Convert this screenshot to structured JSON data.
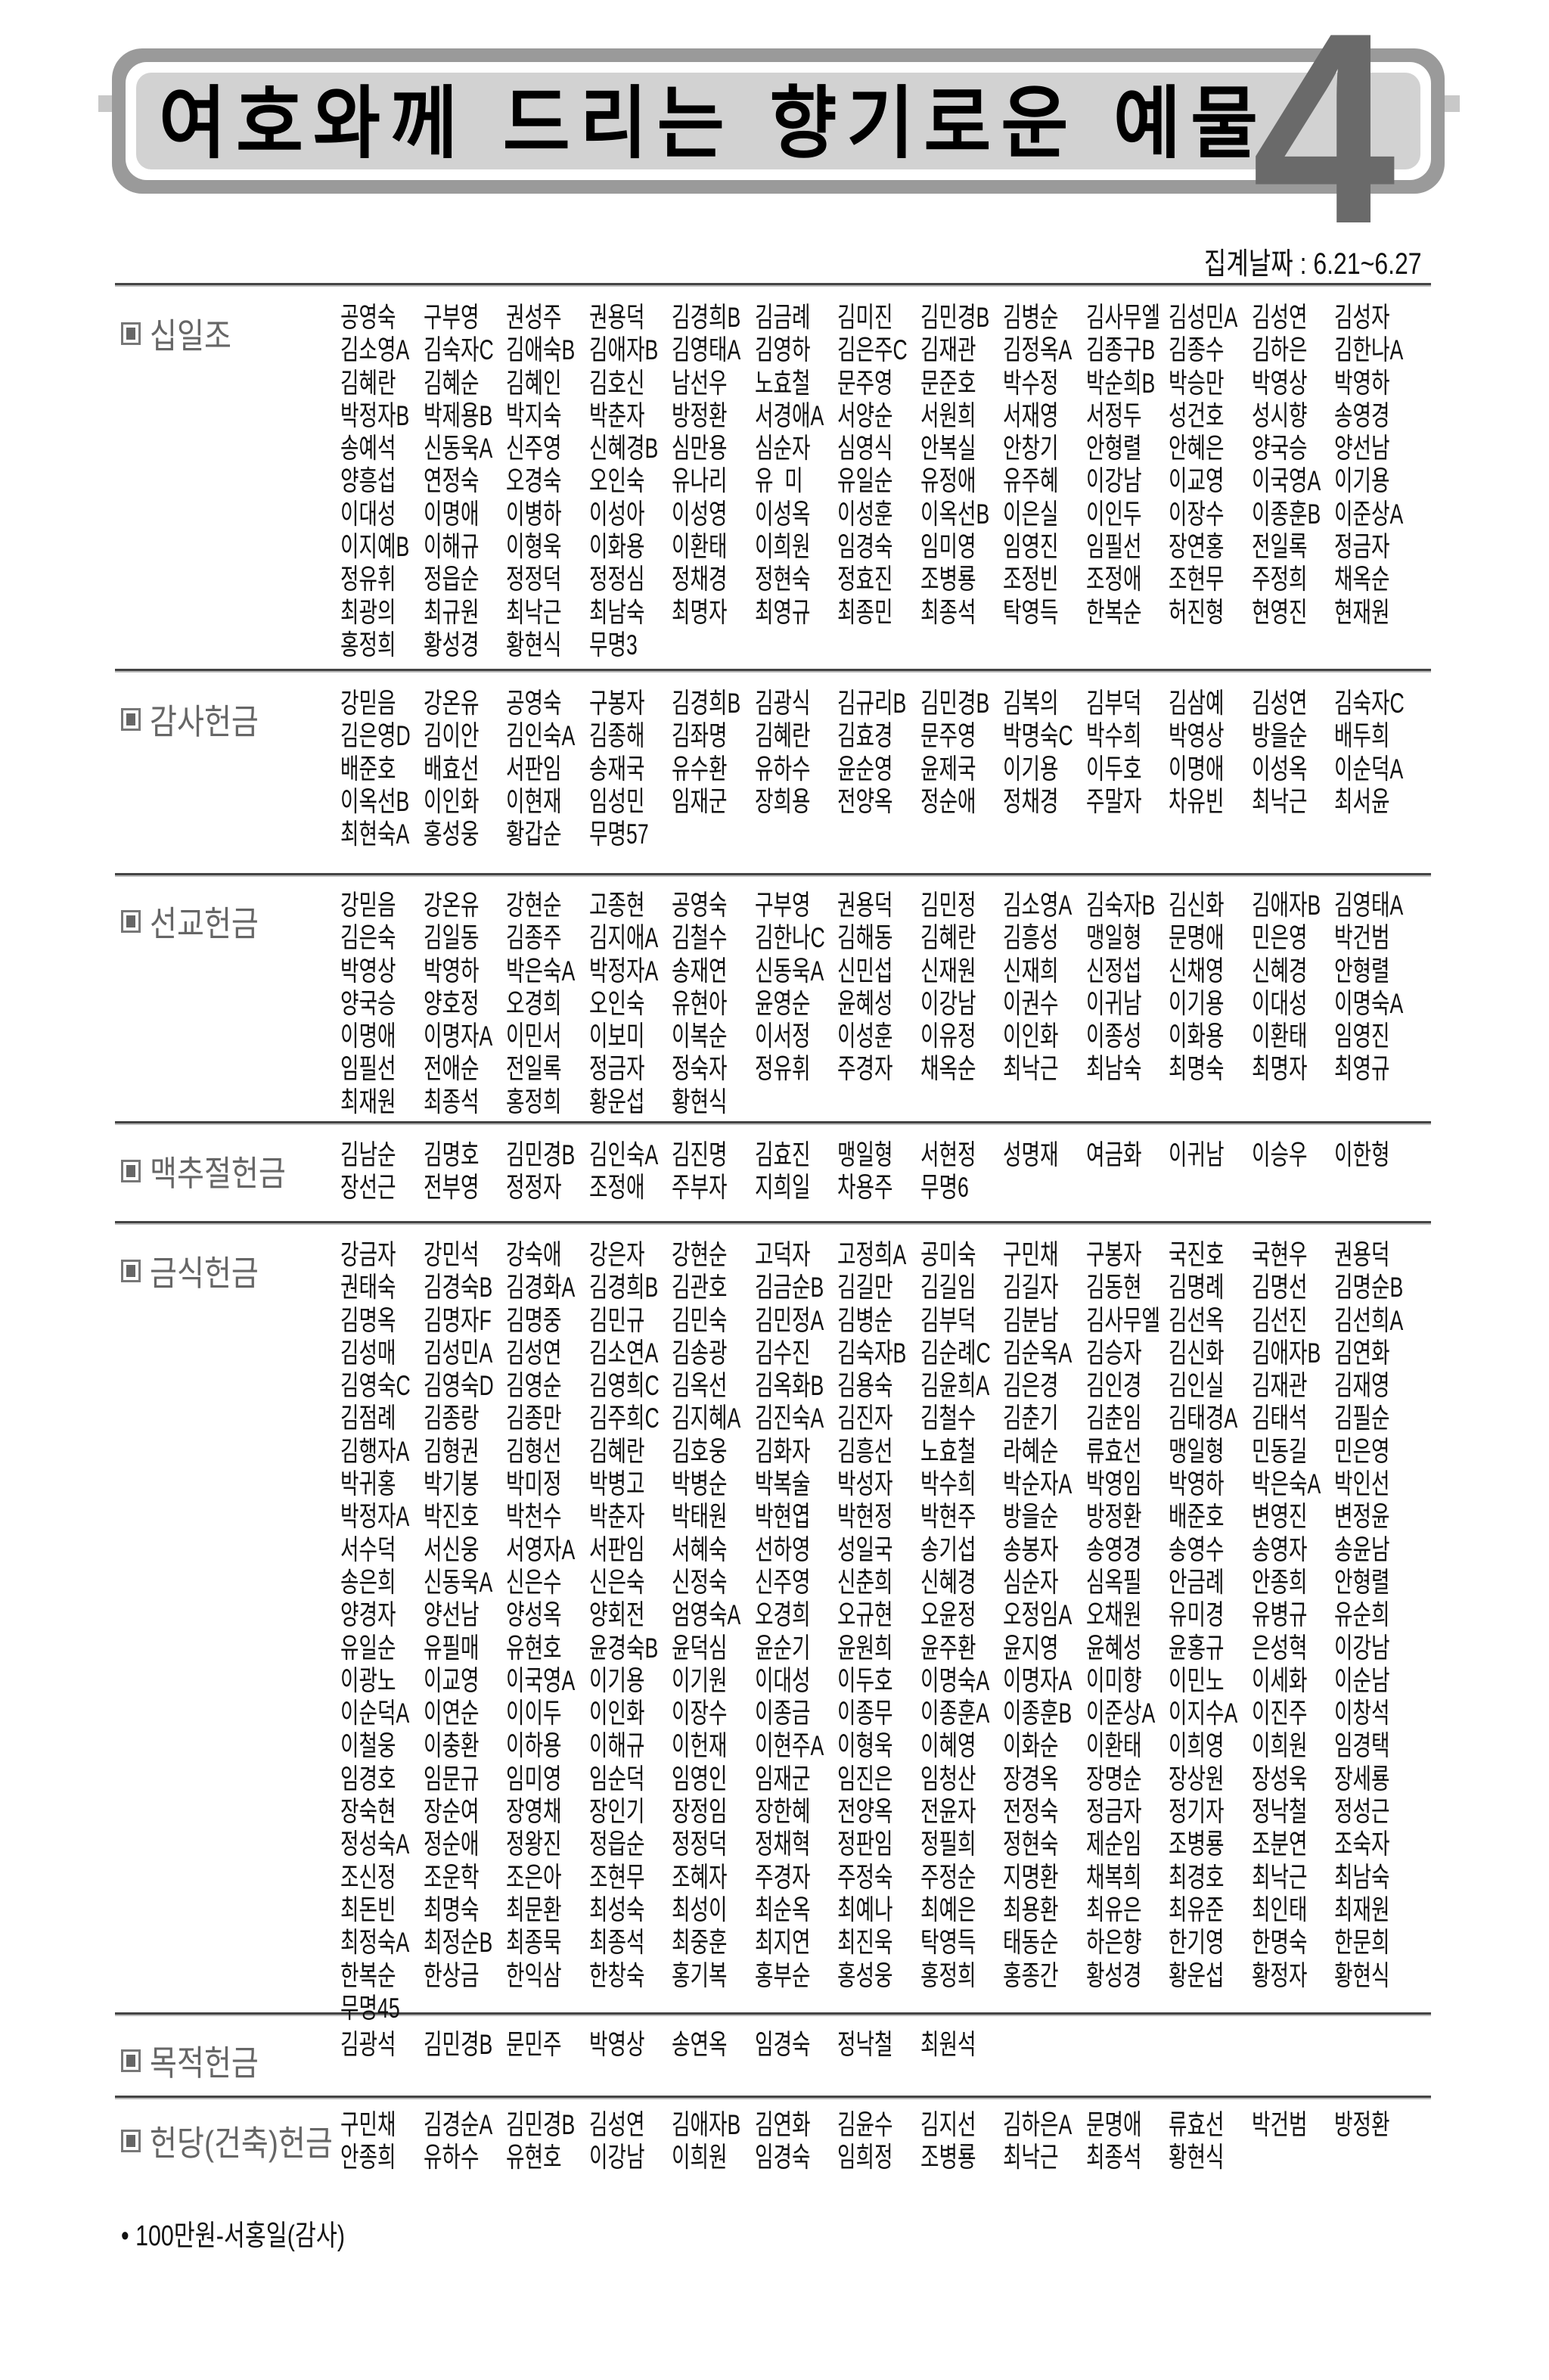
{
  "header": {
    "title": "여호와께 드리는 향기로운 예물",
    "number": "4",
    "date": "집계날짜 : 6.21~6.27"
  },
  "sections": [
    {
      "label": "십일조",
      "names": [
        "공영숙",
        "구부영",
        "권성주",
        "권용덕",
        "김경희B",
        "김금례",
        "김미진",
        "김민경B",
        "김병순",
        "김사무엘",
        "김성민A",
        "김성연",
        "김성자",
        "김소영A",
        "김숙자C",
        "김애숙B",
        "김애자B",
        "김영태A",
        "김영하",
        "김은주C",
        "김재관",
        "김정옥A",
        "김종구B",
        "김종수",
        "김하은",
        "김한나A",
        "김혜란",
        "김혜순",
        "김혜인",
        "김호신",
        "남선우",
        "노효철",
        "문주영",
        "문준호",
        "박수정",
        "박순희B",
        "박승만",
        "박영상",
        "박영하",
        "박정자B",
        "박제용B",
        "박지숙",
        "박춘자",
        "방정환",
        "서경애A",
        "서양순",
        "서원희",
        "서재영",
        "서정두",
        "성건호",
        "성시향",
        "송영경",
        "송예석",
        "신동욱A",
        "신주영",
        "신혜경B",
        "심만용",
        "심순자",
        "심영식",
        "안복실",
        "안창기",
        "안형렬",
        "안혜은",
        "양국승",
        "양선남",
        "양흥섭",
        "연정숙",
        "오경숙",
        "오인숙",
        "유나리",
        "유  미",
        "유일순",
        "유정애",
        "유주혜",
        "이강남",
        "이교영",
        "이국영A",
        "이기용",
        "이대성",
        "이명애",
        "이병하",
        "이성아",
        "이성영",
        "이성옥",
        "이성훈",
        "이옥선B",
        "이은실",
        "이인두",
        "이장수",
        "이종훈B",
        "이준상A",
        "이지예B",
        "이해규",
        "이형욱",
        "이화용",
        "이환태",
        "이희원",
        "임경숙",
        "임미영",
        "임영진",
        "임필선",
        "장연홍",
        "전일록",
        "정금자",
        "정유휘",
        "정읍순",
        "정정덕",
        "정정심",
        "정채경",
        "정현숙",
        "정효진",
        "조병룡",
        "조정빈",
        "조정애",
        "조현무",
        "주정희",
        "채옥순",
        "최광의",
        "최규원",
        "최낙근",
        "최남숙",
        "최명자",
        "최영규",
        "최종민",
        "최종석",
        "탁영득",
        "한복순",
        "허진형",
        "현영진",
        "현재원",
        "홍정희",
        "황성경",
        "황현식",
        "무명3"
      ]
    },
    {
      "label": "감사헌금",
      "names": [
        "강믿음",
        "강온유",
        "공영숙",
        "구봉자",
        "김경희B",
        "김광식",
        "김규리B",
        "김민경B",
        "김복의",
        "김부덕",
        "김삼예",
        "김성연",
        "김숙자C",
        "김은영D",
        "김이안",
        "김인숙A",
        "김종해",
        "김좌명",
        "김혜란",
        "김효경",
        "문주영",
        "박명숙C",
        "박수희",
        "박영상",
        "방을순",
        "배두희",
        "배준호",
        "배효선",
        "서판임",
        "송재국",
        "유수환",
        "유하수",
        "윤순영",
        "윤제국",
        "이기용",
        "이두호",
        "이명애",
        "이성옥",
        "이순덕A",
        "이옥선B",
        "이인화",
        "이현재",
        "임성민",
        "임재군",
        "장희용",
        "전양옥",
        "정순애",
        "정채경",
        "주말자",
        "차유빈",
        "최낙근",
        "최서윤",
        "최현숙A",
        "홍성웅",
        "황갑순",
        "무명57"
      ]
    },
    {
      "label": "선교헌금",
      "names": [
        "강믿음",
        "강온유",
        "강현순",
        "고종현",
        "공영숙",
        "구부영",
        "권용덕",
        "김민정",
        "김소영A",
        "김숙자B",
        "김신화",
        "김애자B",
        "김영태A",
        "김은숙",
        "김일동",
        "김종주",
        "김지애A",
        "김철수",
        "김한나C",
        "김해동",
        "김혜란",
        "김흥성",
        "맹일형",
        "문명애",
        "민은영",
        "박건범",
        "박영상",
        "박영하",
        "박은숙A",
        "박정자A",
        "송재연",
        "신동욱A",
        "신민섭",
        "신재원",
        "신재희",
        "신정섭",
        "신채영",
        "신혜경",
        "안형렬",
        "양국승",
        "양호정",
        "오경희",
        "오인숙",
        "유현아",
        "윤영순",
        "윤혜성",
        "이강남",
        "이권수",
        "이귀남",
        "이기용",
        "이대성",
        "이명숙A",
        "이명애",
        "이명자A",
        "이민서",
        "이보미",
        "이복순",
        "이서정",
        "이성훈",
        "이유정",
        "이인화",
        "이종성",
        "이화용",
        "이환태",
        "임영진",
        "임필선",
        "전애순",
        "전일록",
        "정금자",
        "정숙자",
        "정유휘",
        "주경자",
        "채옥순",
        "최낙근",
        "최남숙",
        "최명숙",
        "최명자",
        "최영규",
        "최재원",
        "최종석",
        "홍정희",
        "황운섭",
        "황현식"
      ]
    },
    {
      "label": "맥추절헌금",
      "names": [
        "김남순",
        "김명호",
        "김민경B",
        "김인숙A",
        "김진명",
        "김효진",
        "맹일형",
        "서현정",
        "성명재",
        "여금화",
        "이귀남",
        "이승우",
        "이한형",
        "장선근",
        "전부영",
        "정정자",
        "조정애",
        "주부자",
        "지희일",
        "차용주",
        "무명6"
      ]
    },
    {
      "label": "금식헌금",
      "names": [
        "강금자",
        "강민석",
        "강숙애",
        "강은자",
        "강현순",
        "고덕자",
        "고정희A",
        "공미숙",
        "구민채",
        "구봉자",
        "국진호",
        "국현우",
        "권용덕",
        "권태숙",
        "김경숙B",
        "김경화A",
        "김경희B",
        "김관호",
        "김금순B",
        "김길만",
        "김길임",
        "김길자",
        "김동현",
        "김명례",
        "김명선",
        "김명순B",
        "김명옥",
        "김명자F",
        "김명중",
        "김민규",
        "김민숙",
        "김민정A",
        "김병순",
        "김부덕",
        "김분남",
        "김사무엘",
        "김선옥",
        "김선진",
        "김선희A",
        "김성매",
        "김성민A",
        "김성연",
        "김소연A",
        "김송광",
        "김수진",
        "김숙자B",
        "김순례C",
        "김순옥A",
        "김승자",
        "김신화",
        "김애자B",
        "김연화",
        "김영숙C",
        "김영숙D",
        "김영순",
        "김영희C",
        "김옥선",
        "김옥화B",
        "김용숙",
        "김윤희A",
        "김은경",
        "김인경",
        "김인실",
        "김재관",
        "김재영",
        "김점례",
        "김종랑",
        "김종만",
        "김주희C",
        "김지혜A",
        "김진숙A",
        "김진자",
        "김철수",
        "김춘기",
        "김춘임",
        "김태경A",
        "김태석",
        "김필순",
        "김행자A",
        "김형권",
        "김형선",
        "김혜란",
        "김호웅",
        "김화자",
        "김흥선",
        "노효철",
        "라혜순",
        "류효선",
        "맹일형",
        "민동길",
        "민은영",
        "박귀홍",
        "박기봉",
        "박미정",
        "박병고",
        "박병순",
        "박복술",
        "박성자",
        "박수희",
        "박순자A",
        "박영임",
        "박영하",
        "박은숙A",
        "박인선",
        "박정자A",
        "박진호",
        "박천수",
        "박춘자",
        "박태원",
        "박현엽",
        "박현정",
        "박현주",
        "방을순",
        "방정환",
        "배준호",
        "변영진",
        "변정윤",
        "서수덕",
        "서신웅",
        "서영자A",
        "서판임",
        "서혜숙",
        "선하영",
        "성일국",
        "송기섭",
        "송봉자",
        "송영경",
        "송영수",
        "송영자",
        "송윤남",
        "송은희",
        "신동욱A",
        "신은수",
        "신은숙",
        "신정숙",
        "신주영",
        "신춘희",
        "신혜경",
        "심순자",
        "심옥필",
        "안금례",
        "안종희",
        "안형렬",
        "양경자",
        "양선남",
        "양성옥",
        "양회전",
        "엄영숙A",
        "오경희",
        "오규현",
        "오윤정",
        "오정임A",
        "오채원",
        "유미경",
        "유병규",
        "유순희",
        "유일순",
        "유필매",
        "유현호",
        "윤경숙B",
        "윤덕심",
        "윤순기",
        "윤원희",
        "윤주환",
        "윤지영",
        "윤혜성",
        "윤홍규",
        "은성혁",
        "이강남",
        "이광노",
        "이교영",
        "이국영A",
        "이기용",
        "이기원",
        "이대성",
        "이두호",
        "이명숙A",
        "이명자A",
        "이미향",
        "이민노",
        "이세화",
        "이순남",
        "이순덕A",
        "이연순",
        "이이두",
        "이인화",
        "이장수",
        "이종금",
        "이종무",
        "이종훈A",
        "이종훈B",
        "이준상A",
        "이지수A",
        "이진주",
        "이창석",
        "이철웅",
        "이충환",
        "이하용",
        "이해규",
        "이헌재",
        "이현주A",
        "이형욱",
        "이혜영",
        "이화순",
        "이환태",
        "이희영",
        "이희원",
        "임경택",
        "임경호",
        "임문규",
        "임미영",
        "임순덕",
        "임영인",
        "임재군",
        "임진은",
        "임청산",
        "장경옥",
        "장명순",
        "장상원",
        "장성욱",
        "장세룡",
        "장숙현",
        "장순여",
        "장영채",
        "장인기",
        "장정임",
        "장한혜",
        "전양옥",
        "전윤자",
        "전정숙",
        "정금자",
        "정기자",
        "정낙철",
        "정성근",
        "정성숙A",
        "정순애",
        "정왕진",
        "정읍순",
        "정정덕",
        "정채혁",
        "정판임",
        "정필희",
        "정현숙",
        "제순임",
        "조병룡",
        "조분연",
        "조숙자",
        "조신정",
        "조운학",
        "조은아",
        "조현무",
        "조혜자",
        "주경자",
        "주정숙",
        "주정순",
        "지명환",
        "채복희",
        "최경호",
        "최낙근",
        "최남숙",
        "최돈빈",
        "최명숙",
        "최문환",
        "최성숙",
        "최성이",
        "최순옥",
        "최예나",
        "최예은",
        "최용환",
        "최유은",
        "최유준",
        "최인태",
        "최재원",
        "최정숙A",
        "최정순B",
        "최종묵",
        "최종석",
        "최중훈",
        "최지연",
        "최진욱",
        "탁영득",
        "태동순",
        "하은향",
        "한기영",
        "한명숙",
        "한문희",
        "한복순",
        "한상금",
        "한익삼",
        "한창숙",
        "홍기복",
        "홍부순",
        "홍성웅",
        "홍정희",
        "홍종간",
        "황성경",
        "황운섭",
        "황정자",
        "황현식",
        "무명45"
      ]
    },
    {
      "label": "목적헌금",
      "names": [
        "김광석",
        "김민경B",
        "문민주",
        "박영상",
        "송연옥",
        "임경숙",
        "정낙철",
        "최원석"
      ]
    },
    {
      "label": "헌당(건축)헌금",
      "names": [
        "구민채",
        "김경순A",
        "김민경B",
        "김성연",
        "김애자B",
        "김연화",
        "김윤수",
        "김지선",
        "김하은A",
        "문명애",
        "류효선",
        "박건범",
        "방정환",
        "안종희",
        "유하수",
        "유현호",
        "이강남",
        "이희원",
        "임경숙",
        "임희정",
        "조병룡",
        "최낙근",
        "최종석",
        "황현식"
      ]
    }
  ],
  "footnote": "• 100만원-서홍일(감사)",
  "colors": {
    "pill_outer": "#9a9a9a",
    "pill_inner": "#d2d2d2",
    "number": "#6a6a6a",
    "label": "#666666"
  }
}
